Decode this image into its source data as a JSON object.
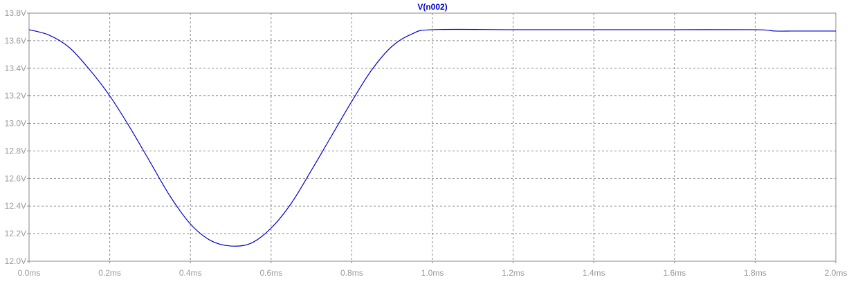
{
  "chart_data": {
    "type": "line",
    "title": "V(n002)",
    "xlabel": "",
    "ylabel": "",
    "xlim": [
      0.0,
      2.0
    ],
    "ylim": [
      12.0,
      13.8
    ],
    "grid": true,
    "x_ticks": [
      {
        "value": 0.0,
        "label": "0.0ms"
      },
      {
        "value": 0.2,
        "label": "0.2ms"
      },
      {
        "value": 0.4,
        "label": "0.4ms"
      },
      {
        "value": 0.6,
        "label": "0.6ms"
      },
      {
        "value": 0.8,
        "label": "0.8ms"
      },
      {
        "value": 1.0,
        "label": "1.0ms"
      },
      {
        "value": 1.2,
        "label": "1.2ms"
      },
      {
        "value": 1.4,
        "label": "1.4ms"
      },
      {
        "value": 1.6,
        "label": "1.6ms"
      },
      {
        "value": 1.8,
        "label": "1.8ms"
      },
      {
        "value": 2.0,
        "label": "2.0ms"
      }
    ],
    "y_ticks": [
      {
        "value": 13.8,
        "label": "13.8V"
      },
      {
        "value": 13.6,
        "label": "13.6V"
      },
      {
        "value": 13.4,
        "label": "13.4V"
      },
      {
        "value": 13.2,
        "label": "13.2V"
      },
      {
        "value": 13.0,
        "label": "13.0V"
      },
      {
        "value": 12.8,
        "label": "12.8V"
      },
      {
        "value": 12.6,
        "label": "12.6V"
      },
      {
        "value": 12.4,
        "label": "12.4V"
      },
      {
        "value": 12.2,
        "label": "12.2V"
      },
      {
        "value": 12.0,
        "label": "12.0V"
      }
    ],
    "series": [
      {
        "name": "V(n002)",
        "color": "#0000cc",
        "x": [
          0.0,
          0.05,
          0.1,
          0.15,
          0.2,
          0.25,
          0.3,
          0.35,
          0.4,
          0.45,
          0.5,
          0.55,
          0.6,
          0.65,
          0.7,
          0.75,
          0.8,
          0.85,
          0.9,
          0.95,
          1.0,
          1.2,
          1.4,
          1.6,
          1.8,
          1.85,
          1.9,
          2.0
        ],
        "values": [
          13.68,
          13.64,
          13.55,
          13.39,
          13.2,
          12.97,
          12.72,
          12.47,
          12.27,
          12.15,
          12.11,
          12.13,
          12.24,
          12.42,
          12.66,
          12.91,
          13.16,
          13.39,
          13.56,
          13.65,
          13.68,
          13.68,
          13.68,
          13.68,
          13.68,
          13.67,
          13.67,
          13.67
        ]
      }
    ],
    "colors": {
      "axis_text": "#999999",
      "grid": "#888888",
      "frame": "#888888",
      "title": "#0000cc"
    }
  }
}
